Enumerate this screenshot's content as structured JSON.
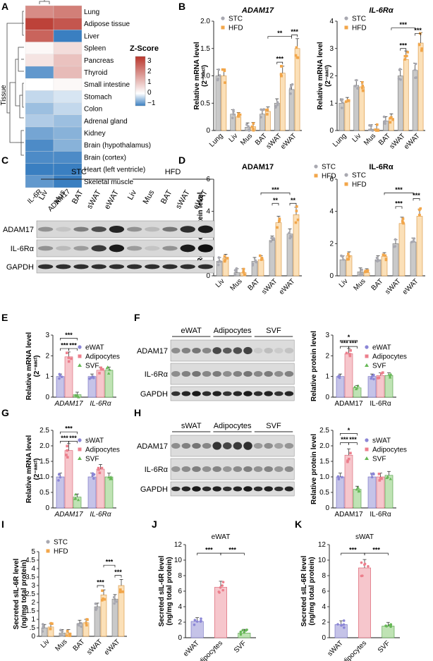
{
  "panels": {
    "A": {
      "label": "A",
      "axis_title": "Tissue",
      "legend_title": "Z-Score",
      "legend_ticks": [
        "3",
        "2",
        "1",
        "0",
        "−1"
      ],
      "columns": [
        "IL-6R",
        "ADAM17"
      ],
      "rows": [
        "Lung",
        "Adipose tissue",
        "Liver",
        "Spleen",
        "Pancreas",
        "Thyroid",
        "Small intestine",
        "Stomach",
        "Colon",
        "Adrenal gland",
        "Kidney",
        "Brain (hypothalamus)",
        "Brain (cortex)",
        "Heart (left ventricle)",
        "Skeletal muscle"
      ],
      "values": [
        [
          1.7,
          1.9
        ],
        [
          2.8,
          2.5
        ],
        [
          2.3,
          -1.0
        ],
        [
          0.1,
          0.5
        ],
        [
          0.4,
          0.9
        ],
        [
          -0.8,
          1.0
        ],
        [
          0.0,
          0.1
        ],
        [
          -0.3,
          -0.2
        ],
        [
          -0.5,
          -0.3
        ],
        [
          -0.4,
          -0.5
        ],
        [
          -0.7,
          -0.6
        ],
        [
          -0.9,
          -0.6
        ],
        [
          -0.9,
          -0.9
        ],
        [
          -1.0,
          -1.1
        ],
        [
          -0.8,
          -1.1
        ]
      ],
      "colors": {
        "high": "#c0392b",
        "mid": "#ffffff",
        "low": "#3a7fc1"
      }
    },
    "B": {
      "label": "B"
    },
    "C": {
      "label": "C",
      "groups": [
        "STC",
        "HFD"
      ],
      "lanes": [
        "Liv",
        "Mus",
        "BAT",
        "sWAT",
        "eWAT",
        "Liv",
        "Mus",
        "BAT",
        "sWAT",
        "eWAT"
      ],
      "rows": [
        "ADAM17",
        "IL-6Rα",
        "GAPDH"
      ]
    },
    "D": {
      "label": "D"
    },
    "E": {
      "label": "E"
    },
    "F": {
      "label": "F",
      "groups": [
        "eWAT",
        "Adipocytes",
        "SVF"
      ],
      "rows": [
        "ADAM17",
        "IL-6Rα",
        "GAPDH"
      ]
    },
    "G": {
      "label": "G"
    },
    "H": {
      "label": "H",
      "groups": [
        "sWAT",
        "Adipocytes",
        "SVF"
      ],
      "rows": [
        "ADAM17",
        "IL-6Rα",
        "GAPDH"
      ]
    },
    "I": {
      "label": "I"
    },
    "J": {
      "label": "J"
    },
    "K": {
      "label": "K"
    }
  },
  "chart_data": [
    {
      "id": "B1",
      "type": "bar",
      "title": "ADAM17",
      "title_style": "italic",
      "ylabel": "Relative mRNA level",
      "ylabel_sub": "(2⁻ᵃᵃᶜᵗ)",
      "ylim": [
        0,
        2.0
      ],
      "yticks": [
        0,
        0.5,
        1.0,
        1.5,
        2.0
      ],
      "ytick_labels": [
        "0",
        "0.5",
        "1.0",
        "1.5",
        "2.0"
      ],
      "categories": [
        "Lung",
        "Liv",
        "Mus",
        "BAT",
        "sWAT",
        "eWAT"
      ],
      "series": [
        {
          "name": "STC",
          "values": [
            1.0,
            0.3,
            0.06,
            0.3,
            0.5,
            0.75
          ]
        },
        {
          "name": "HFD",
          "values": [
            1.0,
            0.25,
            0.07,
            0.35,
            1.05,
            1.5
          ]
        }
      ],
      "legend": [
        "STC",
        "HFD"
      ],
      "legend_position": "top-left",
      "annotations": [
        "**",
        "***",
        "***"
      ]
    },
    {
      "id": "B2",
      "type": "bar",
      "title": "IL-6Rα",
      "title_style": "italic",
      "ylabel": "Relative mRNA level",
      "ylabel_sub": "(2⁻ᵃᵃᶜᵗ)",
      "ylim": [
        0,
        4
      ],
      "yticks": [
        0,
        1,
        2,
        3,
        4
      ],
      "ytick_labels": [
        "0",
        "1",
        "2",
        "3",
        "4"
      ],
      "categories": [
        "Lung",
        "Liv",
        "Mus",
        "BAT",
        "sWAT",
        "eWAT"
      ],
      "series": [
        {
          "name": "STC",
          "values": [
            1.0,
            1.65,
            0.05,
            0.35,
            2.0,
            2.2
          ]
        },
        {
          "name": "HFD",
          "values": [
            1.05,
            1.6,
            0.06,
            0.45,
            2.6,
            3.2
          ]
        }
      ],
      "legend": [
        "STC",
        "HFD"
      ],
      "legend_position": "top-left",
      "annotations": [
        "***",
        "***",
        "***"
      ]
    },
    {
      "id": "D1",
      "type": "bar",
      "title": "ADAM17",
      "title_style": "bold",
      "ylabel": "Relative protein level",
      "ylim": [
        0,
        6
      ],
      "yticks": [
        0,
        2,
        4,
        6
      ],
      "ytick_labels": [
        "0",
        "2",
        "4",
        "6"
      ],
      "categories": [
        "Liv",
        "Mus",
        "BAT",
        "sWAT",
        "eWAT"
      ],
      "series": [
        {
          "name": "STC",
          "values": [
            0.9,
            0.2,
            0.9,
            2.2,
            2.6
          ]
        },
        {
          "name": "HFD",
          "values": [
            1.1,
            0.2,
            1.0,
            3.3,
            3.8
          ]
        }
      ],
      "legend": [
        "STC",
        "HFD"
      ],
      "legend_position": "top-right",
      "annotations": [
        "***",
        "**",
        "**"
      ]
    },
    {
      "id": "D2",
      "type": "bar",
      "title": "IL-6Rα",
      "title_style": "bold",
      "ylabel": "",
      "ylim": [
        0,
        6
      ],
      "yticks": [
        0,
        2,
        4,
        6
      ],
      "ytick_labels": [
        "0",
        "2",
        "4",
        "6"
      ],
      "categories": [
        "Liv",
        "Mus",
        "BAT",
        "sWAT",
        "eWAT"
      ],
      "series": [
        {
          "name": "STC",
          "values": [
            1.0,
            0.25,
            1.0,
            2.0,
            2.1
          ]
        },
        {
          "name": "HFD",
          "values": [
            1.25,
            0.2,
            1.2,
            3.25,
            3.7
          ]
        }
      ],
      "legend": [
        "STC",
        "HFD"
      ],
      "legend_position": "top-right",
      "annotations": [
        "***",
        "***",
        "***"
      ]
    },
    {
      "id": "E",
      "type": "bar",
      "ylabel": "Relative mRNA level",
      "ylabel_sub": "(2⁻ᵃᵃᶜᵗ)",
      "ylim": [
        0,
        3
      ],
      "yticks": [
        0,
        1,
        2,
        3
      ],
      "ytick_labels": [
        "0",
        "1",
        "2",
        "3"
      ],
      "categories": [
        "ADAM17",
        "IL-6Rα"
      ],
      "category_style": "italic",
      "series": [
        {
          "name": "eWAT",
          "values": [
            1.0,
            1.0
          ]
        },
        {
          "name": "Adipocytes",
          "values": [
            1.95,
            1.3
          ]
        },
        {
          "name": "SVF",
          "values": [
            0.12,
            1.3
          ]
        }
      ],
      "legend": [
        "eWAT",
        "Adipocytes",
        "SVF"
      ],
      "legend_position": "right",
      "annotations": [
        "***",
        "***",
        "***"
      ]
    },
    {
      "id": "F",
      "type": "bar",
      "ylabel": "Relative protein level",
      "ylim": [
        0,
        3
      ],
      "yticks": [
        0,
        1,
        2,
        3
      ],
      "ytick_labels": [
        "0",
        "1",
        "2",
        "3"
      ],
      "categories": [
        "ADAM17",
        "IL-6Rα"
      ],
      "category_style": "normal",
      "series": [
        {
          "name": "eWAT",
          "values": [
            1.0,
            1.0
          ]
        },
        {
          "name": "Adipocytes",
          "values": [
            2.1,
            1.05
          ]
        },
        {
          "name": "SVF",
          "values": [
            0.45,
            1.05
          ]
        }
      ],
      "legend": [
        "eWAT",
        "Adipocytes",
        "SVF"
      ],
      "legend_position": "right",
      "annotations": [
        "*",
        "***",
        "***"
      ]
    },
    {
      "id": "G",
      "type": "bar",
      "ylabel": "Relative mRNA level",
      "ylabel_sub": "(2⁻ᵃᵃᶜᵗ)",
      "ylim": [
        0,
        2.5
      ],
      "yticks": [
        0,
        0.5,
        1.0,
        1.5,
        2.0,
        2.5
      ],
      "ytick_labels": [
        "0",
        "0.5",
        "1.0",
        "1.5",
        "2.0",
        "2.5"
      ],
      "categories": [
        "ADAM17",
        "IL-6Rα"
      ],
      "category_style": "italic",
      "series": [
        {
          "name": "sWAT",
          "values": [
            1.0,
            1.0
          ]
        },
        {
          "name": "Adipocytes",
          "values": [
            1.85,
            1.25
          ]
        },
        {
          "name": "SVF",
          "values": [
            0.35,
            1.0
          ]
        }
      ],
      "legend": [
        "sWAT",
        "Adipocytes",
        "SVF"
      ],
      "legend_position": "right",
      "annotations": [
        "***",
        "***",
        "***"
      ]
    },
    {
      "id": "H",
      "type": "bar",
      "ylabel": "Relative protein level",
      "ylim": [
        0,
        2.5
      ],
      "yticks": [
        0,
        0.5,
        1.0,
        1.5,
        2.0,
        2.5
      ],
      "ytick_labels": [
        "0",
        "0.5",
        "1.0",
        "1.5",
        "2.0",
        "2.5"
      ],
      "categories": [
        "ADAM17",
        "IL-6Rα"
      ],
      "category_style": "normal",
      "series": [
        {
          "name": "sWAT",
          "values": [
            1.0,
            1.0
          ]
        },
        {
          "name": "Adipocytes",
          "values": [
            1.7,
            1.0
          ]
        },
        {
          "name": "SVF",
          "values": [
            0.6,
            1.05
          ]
        }
      ],
      "legend": [
        "sWAT",
        "Adipocytes",
        "SVF"
      ],
      "legend_position": "right",
      "annotations": [
        "*",
        "***",
        "***"
      ]
    },
    {
      "id": "I",
      "type": "bar",
      "ylabel": "Secreted sIL-6R level",
      "ylabel_sub": "(ng/mg total protein)",
      "ylim": [
        0,
        5
      ],
      "yticks": [
        0,
        0.5,
        1,
        1.5,
        2,
        2.5,
        3,
        3.5,
        4,
        4.5,
        5
      ],
      "ytick_labels": [
        "0",
        ".5",
        "1",
        "1.5",
        "2",
        "2.5",
        "3",
        "3.5",
        "4",
        "4.5",
        "5"
      ],
      "categories": [
        "Liv",
        "Mus",
        "BAT",
        "sWAT",
        "eWAT"
      ],
      "series": [
        {
          "name": "STC",
          "values": [
            0.5,
            0.2,
            0.75,
            1.75,
            2.2
          ]
        },
        {
          "name": "HFD",
          "values": [
            0.55,
            0.2,
            0.8,
            2.45,
            3.0
          ]
        }
      ],
      "legend": [
        "STC",
        "HFD"
      ],
      "legend_position": "top-left",
      "annotations": [
        "***",
        "***",
        "***"
      ]
    },
    {
      "id": "J",
      "type": "bar",
      "title": "eWAT",
      "title_style": "normal",
      "ylabel": "Secreted sIL-6R level",
      "ylabel_sub": "(ng/mg total protein)",
      "ylim": [
        0,
        12
      ],
      "yticks": [
        0,
        2,
        4,
        6,
        8,
        10,
        12
      ],
      "ytick_labels": [
        "0",
        "2",
        "4",
        "6",
        "8",
        "10",
        "12"
      ],
      "categories": [
        "eWAT",
        "Adipocytes",
        "SVF"
      ],
      "series": [
        {
          "name": "",
          "values": [
            2.1,
            6.5,
            0.6
          ]
        }
      ],
      "annotations": [
        "***",
        "***"
      ]
    },
    {
      "id": "K",
      "type": "bar",
      "title": "sWAT",
      "title_style": "normal",
      "ylabel": "Secreted sIL-6R level",
      "ylabel_sub": "(ng/mg total protein)",
      "ylim": [
        0,
        12
      ],
      "yticks": [
        0,
        2,
        4,
        6,
        8,
        10,
        12
      ],
      "ytick_labels": [
        "0",
        "2",
        "4",
        "6",
        "8",
        "10",
        "12"
      ],
      "categories": [
        "sWAT",
        "Adipocytes",
        "SVF"
      ],
      "series": [
        {
          "name": "",
          "values": [
            1.7,
            9.0,
            1.5
          ]
        }
      ],
      "annotations": [
        "***",
        "***"
      ]
    }
  ]
}
